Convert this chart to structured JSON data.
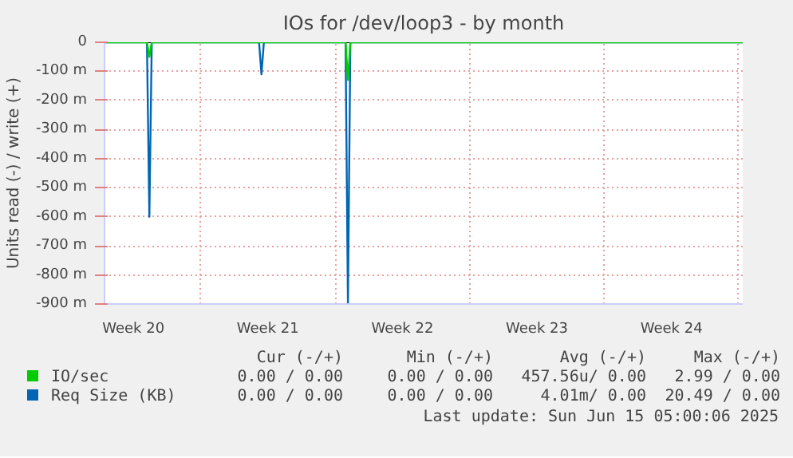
{
  "chart_data": {
    "type": "line",
    "title": "IOs for /dev/loop3 - by month",
    "ylabel": "Units read (-) / write (+)",
    "xlim": [
      "2025-05-14T00:00",
      "2025-06-16T05:00"
    ],
    "ylim": [
      -900,
      0
    ],
    "xticks": [
      {
        "value": "2025-05-15T12:00",
        "label": "Week 20"
      },
      {
        "value": "2025-05-19T00:00",
        "label": null
      },
      {
        "value": "2025-05-22T12:00",
        "label": "Week 21"
      },
      {
        "value": "2025-05-26T00:00",
        "label": null
      },
      {
        "value": "2025-05-29T12:00",
        "label": "Week 22"
      },
      {
        "value": "2025-06-02T00:00",
        "label": null
      },
      {
        "value": "2025-06-05T12:00",
        "label": "Week 23"
      },
      {
        "value": "2025-06-09T00:00",
        "label": null
      },
      {
        "value": "2025-06-12T12:00",
        "label": "Week 24"
      },
      {
        "value": "2025-06-16T00:00",
        "label": null
      }
    ],
    "yticks": [
      0,
      {
        "value": -100,
        "label": "-100 m"
      },
      {
        "value": -200,
        "label": "-200 m"
      },
      {
        "value": -300,
        "label": "-300 m"
      },
      {
        "value": -400,
        "label": "-400 m"
      },
      {
        "value": -500,
        "label": "-500 m"
      },
      {
        "value": -600,
        "label": "-600 m"
      },
      {
        "value": -700,
        "label": "-700 m"
      },
      {
        "value": -800,
        "label": "-800 m"
      },
      {
        "value": -900,
        "label": "-900 m"
      }
    ],
    "series": [
      {
        "name": "IO/sec",
        "color": "#00cc00",
        "x": [
          "2025-05-14T00:00",
          "2025-05-16T05:00",
          "2025-05-16T08:00",
          "2025-05-16T11:00",
          "2025-05-26T13:00",
          "2025-05-26T16:00",
          "2025-05-26T19:00",
          "2025-06-16T05:00"
        ],
        "values": [
          0,
          0,
          -50,
          0,
          0,
          -130,
          0,
          0
        ]
      },
      {
        "name": "Req Size (KB)",
        "color": "#0066b3",
        "x": [
          "2025-05-14T00:00",
          "2025-05-16T05:00",
          "2025-05-16T08:00",
          "2025-05-16T11:00",
          "2025-05-22T01:00",
          "2025-05-22T04:00",
          "2025-05-22T07:00",
          "2025-05-26T13:00",
          "2025-05-26T16:00",
          "2025-05-26T19:00",
          "2025-06-16T05:00"
        ],
        "values": [
          0,
          0,
          -600,
          0,
          0,
          -110,
          0,
          0,
          -900,
          0,
          0
        ]
      }
    ],
    "annotations": [
      "Cur (-/+)",
      "Min (-/+)",
      "Avg (-/+)",
      "Max (-/+)",
      "0.00 / 0.00",
      "0.00 / 0.00",
      "457.56u/ 0.00",
      "2.99 / 0.00",
      "0.00 / 0.00",
      "0.00 / 0.00",
      "4.01m/ 0.00",
      "20.49 / 0.00",
      "Last update: Sun Jun 15 05:00:06 2025"
    ],
    "grid": true,
    "legend": "bottom",
    "line_style": "solid",
    "marker": "none"
  }
}
